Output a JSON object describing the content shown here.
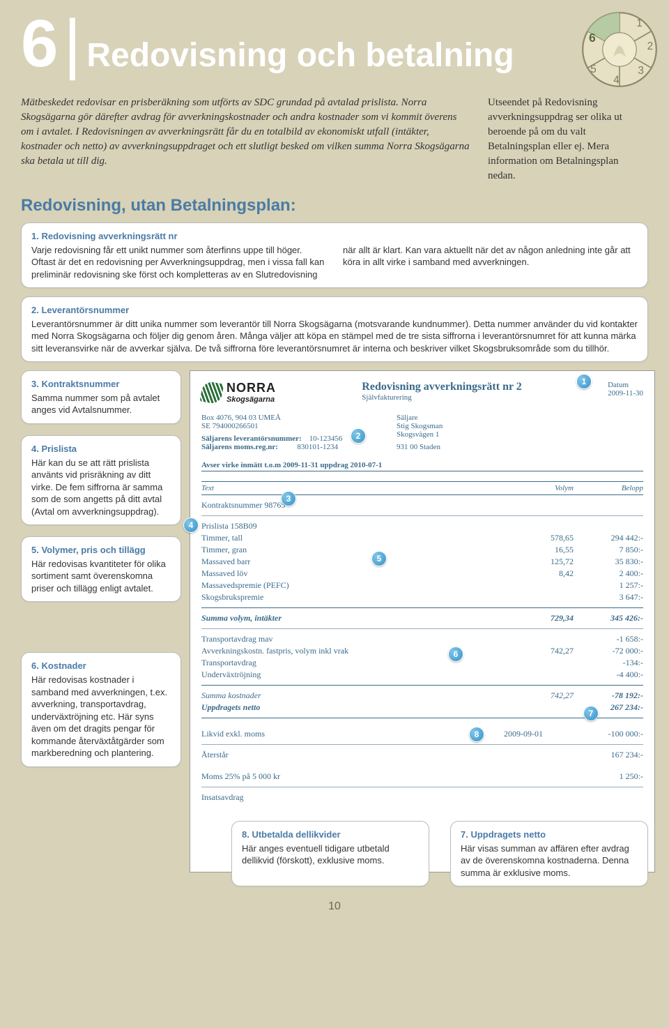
{
  "colors": {
    "page_bg": "#d8d2b8",
    "heading_text": "#ffffff",
    "accent_blue": "#4a7ba6",
    "invoice_text": "#3a6a8a",
    "marker_gradient_light": "#7fc5e8",
    "marker_gradient_dark": "#3794c8",
    "callout_bg": "#ffffff",
    "callout_border": "#bbbbbb"
  },
  "typography": {
    "chapter_num_fontsize": 96,
    "chapter_title_fontsize": 48,
    "section_title_fontsize": 24,
    "body_fontsize": 15,
    "callout_fontsize": 13,
    "invoice_fontsize": 12
  },
  "chapter": {
    "number": "6",
    "title": "Redovisning och betalning"
  },
  "wheel": {
    "segments": [
      "1",
      "2",
      "3",
      "4",
      "5",
      "6"
    ],
    "active": "6"
  },
  "intro": {
    "main": "Mätbeskedet redovisar en prisberäkning som utförts av SDC grundad på avtalad prislista. Norra Skogsägarna gör därefter avdrag för avverkningskostnader och andra kostnader som vi kommit överens om i avtalet. I Redovisningen av avverkningsrätt får du en totalbild av ekonomiskt utfall (intäkter, kostnader och netto) av avverkningsuppdraget och ett slutligt besked om vilken summa Norra Skogsägarna ska betala ut till dig.",
    "side": "Utseendet på Redovisning avverkningsuppdrag ser olika ut beroende på om du valt Betalningsplan eller ej. Mera information om Betalningsplan nedan."
  },
  "section_title": "Redovisning, utan Betalningsplan:",
  "callouts": {
    "c1": {
      "title": "1. Redovisning avverkningsrätt nr",
      "body": "Varje redovisning får ett unikt nummer som återfinns uppe till höger. Oftast är det en redovisning per Avverkningsuppdrag, men i vissa fall kan preliminär redovisning ske först och kompletteras av en Slutredovisning när allt är klart. Kan vara aktuellt när det av någon anledning inte går att köra in allt virke i samband med avverkningen."
    },
    "c2": {
      "title": "2. Leverantörsnummer",
      "body": "Leverantörsnummer är ditt unika nummer som leverantör till Norra Skogsägarna (motsvarande kundnummer). Detta nummer använder du vid kontakter med Norra Skogsägarna och följer dig genom åren. Många väljer att köpa en stämpel med de tre sista siffrorna i leverantörsnumret för att kunna märka sitt leveransvirke när de avverkar själva. De två siffrorna före leverantörsnumret är interna och beskriver vilket Skogsbruksområde som du tillhör."
    },
    "c3": {
      "title": "3. Kontraktsnummer",
      "body": "Samma nummer som på avtalet anges vid Avtalsnummer."
    },
    "c4": {
      "title": "4. Prislista",
      "body": "Här kan du se att rätt prislista använts vid prisräkning av ditt virke. De fem siffrorna är samma som de som angetts på ditt avtal (Avtal om avverkningsuppdrag)."
    },
    "c5": {
      "title": "5. Volymer, pris och tillägg",
      "body": "Här redovisas kvantiteter för olika sortiment samt överenskomna priser och tillägg enligt avtalet."
    },
    "c6": {
      "title": "6. Kostnader",
      "body": "Här redovisas kostnader i samband med avverkningen, t.ex. avverkning, transportavdrag, underväxtröjning etc. Här syns även om det dragits pengar för kommande återväxtåtgärder som markberedning och plantering."
    },
    "c7": {
      "title": "7. Uppdragets netto",
      "body": "Här visas summan av affären efter avdrag av de överenskomna kostnaderna. Denna summa är exklusive moms."
    },
    "c8": {
      "title": "8. Utbetalda dellikvider",
      "body": "Här anges eventuell tidigare utbetald dellikvid (förskott), exklusive moms."
    }
  },
  "invoice": {
    "logo": {
      "line1": "NORRA",
      "line2": "Skogsägarna"
    },
    "title": "Redovisning avverkningsrätt nr 2",
    "subtitle": "Självfakturering",
    "date_label": "Datum",
    "date_value": "2009-11-30",
    "address": {
      "line1": "Box 4076, 904 03 UMEÅ",
      "line2": "SE 794000266501"
    },
    "supplier_num_label": "Säljarens leverantörsnummer:",
    "supplier_num_value": "10-123456",
    "vat_label": "Säljarens moms.reg.nr:",
    "vat_value": "830101-1234",
    "seller_label": "Säljare",
    "seller_name": "Stig Skogsman",
    "seller_addr1": "Skogsvägen 1",
    "seller_addr2": "931 00 Staden",
    "period": "Avser virke inmätt t.o.m 2009-11-31 uppdrag 2010-07-1",
    "col_text": "Text",
    "col_vol": "Volym",
    "col_amt": "Belopp",
    "contract_line": "Kontraktsnummer 98765",
    "pricelist_line": "Prislista 158B09",
    "rows": [
      {
        "text": "Timmer, tall",
        "vol": "578,65",
        "amt": "294 442:-"
      },
      {
        "text": "Timmer, gran",
        "vol": "16,55",
        "amt": "7 850:-"
      },
      {
        "text": "Massaved barr",
        "vol": "125,72",
        "amt": "35 830:-"
      },
      {
        "text": "Massaved löv",
        "vol": "8,42",
        "amt": "2 400:-"
      },
      {
        "text": "Massavedspremie (PEFC)",
        "vol": "",
        "amt": "1 257:-"
      },
      {
        "text": "Skogsbrukspremie",
        "vol": "",
        "amt": "3 647:-"
      }
    ],
    "sum_vol_label": "Summa volym, intäkter",
    "sum_vol_vol": "729,34",
    "sum_vol_amt": "345 426:-",
    "cost_rows": [
      {
        "text": "Transportavdrag mav",
        "vol": "",
        "amt": "-1 658:-"
      },
      {
        "text": "Avverkningskostn. fastpris, volym inkl vrak",
        "vol": "742,27",
        "amt": "-72 000:-"
      },
      {
        "text": "Transportavdrag",
        "vol": "",
        "amt": "-134:-"
      },
      {
        "text": "Underväxtröjning",
        "vol": "",
        "amt": "-4 400:-"
      }
    ],
    "sum_cost_label": "Summa kostnader",
    "sum_cost_vol": "742,27",
    "sum_cost_amt": "-78 192:-",
    "net_label": "Uppdragets netto",
    "net_amt": "267 234:-",
    "likvid_label": "Likvid exkl. moms",
    "likvid_date": "2009-09-01",
    "likvid_amt": "-100 000:-",
    "remain_label": "Återstår",
    "remain_amt": "167 234:-",
    "vat_calc_label": "Moms 25% på 5 000 kr",
    "vat_calc_amt": "1 250:-",
    "insats_label": "Insatsavdrag"
  },
  "page_number": "10"
}
